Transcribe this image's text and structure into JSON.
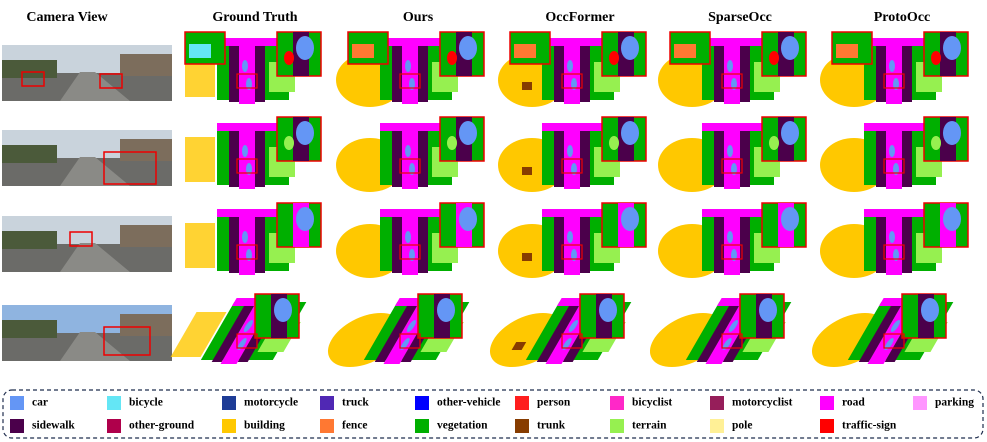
{
  "header": {
    "columns": [
      "Camera View",
      "Ground Truth",
      "Ours",
      "OccFormer",
      "SparseOcc",
      "ProtoOcc"
    ]
  },
  "legend": {
    "items": [
      {
        "label": "car",
        "color": "#6496f5"
      },
      {
        "label": "bicycle",
        "color": "#64e6f5"
      },
      {
        "label": "motorcycle",
        "color": "#1e3c96"
      },
      {
        "label": "truck",
        "color": "#5028b4"
      },
      {
        "label": "other-vehicle",
        "color": "#0000ff"
      },
      {
        "label": "person",
        "color": "#ff1e1e"
      },
      {
        "label": "bicyclist",
        "color": "#ff28c8"
      },
      {
        "label": "motorcyclist",
        "color": "#961e5a"
      },
      {
        "label": "road",
        "color": "#ff00ff"
      },
      {
        "label": "parking",
        "color": "#ff96ff"
      },
      {
        "label": "sidewalk",
        "color": "#4b004b"
      },
      {
        "label": "other-ground",
        "color": "#af004b"
      },
      {
        "label": "building",
        "color": "#ffc800"
      },
      {
        "label": "fence",
        "color": "#ff7832"
      },
      {
        "label": "vegetation",
        "color": "#00af00"
      },
      {
        "label": "trunk",
        "color": "#873c00"
      },
      {
        "label": "terrain",
        "color": "#96f050"
      },
      {
        "label": "pole",
        "color": "#fff096"
      },
      {
        "label": "traffic-sign",
        "color": "#ff0000"
      }
    ]
  }
}
